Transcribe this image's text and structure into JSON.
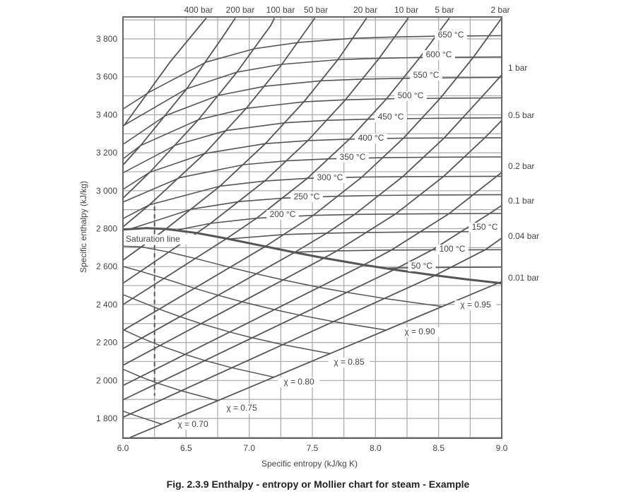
{
  "chart_data": {
    "type": "line",
    "title": "",
    "caption": "Fig. 2.3.9 Enthalpy - entropy or Mollier chart for steam - Example",
    "xlabel": "Specific entropy (kJ/kg K)",
    "ylabel": "Specific enthalpy (kJ/kg)",
    "xlim": [
      6.0,
      9.0
    ],
    "ylim": [
      1700,
      3910
    ],
    "grid": true,
    "grid_step": {
      "x": 0.25,
      "y": 100
    },
    "xticks": [
      "6.0",
      "6.5",
      "7.0",
      "7.5",
      "8.0",
      "8.5",
      "9.0"
    ],
    "yticks": [
      "1 800",
      "2 000",
      "2 200",
      "2 400",
      "2 600",
      "2 800",
      "3 000",
      "3 200",
      "3 400",
      "3 600",
      "3 800"
    ],
    "line_color": "#555555",
    "grid_color": "#a8a8a8",
    "isobars": [
      {
        "name": "400 bar",
        "points": [
          [
            6.0,
            3340
          ],
          [
            6.011,
            3346
          ],
          [
            6.375,
            3680
          ],
          [
            6.66,
            3910
          ]
        ]
      },
      {
        "name": "200 bar",
        "points": [
          [
            6.0,
            3135
          ],
          [
            6.14,
            3238
          ],
          [
            6.505,
            3537
          ],
          [
            6.79,
            3810
          ],
          [
            6.89,
            3910
          ]
        ]
      },
      {
        "name": "100 bar",
        "points": [
          [
            6.0,
            2960
          ],
          [
            6.212,
            3097
          ],
          [
            6.597,
            3374
          ],
          [
            6.903,
            3625
          ],
          [
            7.17,
            3870
          ],
          [
            7.2,
            3910
          ]
        ]
      },
      {
        "name": "50 bar",
        "points": [
          [
            6.0,
            2809
          ],
          [
            6.209,
            2925
          ],
          [
            6.647,
            3196
          ],
          [
            6.976,
            3434
          ],
          [
            7.259,
            3666
          ],
          [
            7.52,
            3910
          ]
        ]
      },
      {
        "name": "20 bar",
        "points": [
          [
            6.0,
            2634
          ],
          [
            6.34,
            2798
          ],
          [
            6.768,
            3024
          ],
          [
            7.128,
            3248
          ],
          [
            7.432,
            3468
          ],
          [
            7.702,
            3690
          ],
          [
            7.93,
            3910
          ]
        ]
      },
      {
        "name": "10 bar",
        "points": [
          [
            6.0,
            2512
          ],
          [
            6.585,
            2777
          ],
          [
            6.694,
            2828
          ],
          [
            7.123,
            3051
          ],
          [
            7.465,
            3264
          ],
          [
            7.762,
            3479
          ],
          [
            8.029,
            3698
          ],
          [
            8.26,
            3910
          ]
        ]
      },
      {
        "name": "5 bar",
        "points": [
          [
            6.0,
            2400
          ],
          [
            6.821,
            2748
          ],
          [
            7.059,
            2855
          ],
          [
            7.46,
            3065
          ],
          [
            7.794,
            3272
          ],
          [
            8.087,
            3484
          ],
          [
            8.352,
            3702
          ],
          [
            8.585,
            3910
          ]
        ]
      },
      {
        "name": "2 bar",
        "points": [
          [
            6.0,
            2263
          ],
          [
            7.127,
            2706
          ],
          [
            7.507,
            2870
          ],
          [
            7.893,
            3072
          ],
          [
            8.222,
            3277
          ],
          [
            8.513,
            3487
          ],
          [
            8.776,
            3704
          ],
          [
            9.0,
            3910
          ]
        ]
      },
      {
        "name": "1 bar",
        "points": [
          [
            6.0,
            2168
          ],
          [
            7.359,
            2675
          ],
          [
            7.614,
            2776
          ],
          [
            7.834,
            2875
          ],
          [
            8.216,
            3074
          ],
          [
            8.544,
            3278
          ],
          [
            8.834,
            3488
          ],
          [
            9.0,
            3610
          ]
        ]
      },
      {
        "name": "0.5 bar",
        "points": [
          [
            6.0,
            2080
          ],
          [
            7.593,
            2645
          ],
          [
            7.695,
            2683
          ],
          [
            8.158,
            2877
          ],
          [
            8.539,
            3075
          ],
          [
            8.866,
            3279
          ],
          [
            9.0,
            3370
          ]
        ]
      },
      {
        "name": "0.2 bar",
        "points": [
          [
            6.0,
            1973
          ],
          [
            7.907,
            2609
          ],
          [
            8.126,
            2687
          ],
          [
            8.583,
            2879
          ],
          [
            8.96,
            3076
          ],
          [
            9.0,
            3097
          ]
        ]
      },
      {
        "name": "0.1 bar",
        "points": [
          [
            6.0,
            1898
          ],
          [
            8.148,
            2584
          ],
          [
            8.449,
            2688
          ],
          [
            8.905,
            2880
          ],
          [
            9.0,
            2922
          ]
        ]
      },
      {
        "name": "0.04 bar",
        "points": [
          [
            6.0,
            1806
          ],
          [
            8.473,
            2554
          ],
          [
            8.87,
            2689
          ],
          [
            9.0,
            2750
          ]
        ]
      },
      {
        "name": "0.01 bar",
        "points": [
          [
            6.057,
            1700
          ],
          [
            8.974,
            2514
          ],
          [
            9.0,
            2521
          ]
        ]
      }
    ],
    "isotherms": [
      {
        "name": "650 °C",
        "points": [
          [
            6.0,
            3430
          ],
          [
            6.21,
            3520
          ],
          [
            6.66,
            3678
          ],
          [
            7.04,
            3748
          ],
          [
            7.39,
            3781
          ],
          [
            7.82,
            3803
          ],
          [
            8.15,
            3810
          ],
          [
            8.47,
            3814
          ],
          [
            9.0,
            3817
          ]
        ]
      },
      {
        "name": "600 °C",
        "points": [
          [
            6.0,
            3342
          ],
          [
            6.505,
            3537
          ],
          [
            6.903,
            3625
          ],
          [
            7.259,
            3666
          ],
          [
            7.702,
            3690
          ],
          [
            8.029,
            3698
          ],
          [
            8.352,
            3702
          ],
          [
            9.0,
            3705
          ]
        ]
      },
      {
        "name": "550 °C",
        "points": [
          [
            6.0,
            3244
          ],
          [
            6.338,
            3396
          ],
          [
            6.756,
            3502
          ],
          [
            7.122,
            3550
          ],
          [
            7.567,
            3579
          ],
          [
            7.9,
            3588
          ],
          [
            8.23,
            3592
          ],
          [
            8.65,
            3595
          ],
          [
            9.0,
            3597
          ]
        ]
      },
      {
        "name": "500 °C",
        "points": [
          [
            6.0,
            3168
          ],
          [
            6.14,
            3238
          ],
          [
            6.597,
            3374
          ],
          [
            6.976,
            3434
          ],
          [
            7.432,
            3468
          ],
          [
            7.762,
            3479
          ],
          [
            8.087,
            3484
          ],
          [
            8.513,
            3487
          ],
          [
            9.0,
            3489
          ]
        ]
      },
      {
        "name": "450 °C",
        "points": [
          [
            6.0,
            3094
          ],
          [
            6.42,
            3241
          ],
          [
            6.819,
            3317
          ],
          [
            7.287,
            3358
          ],
          [
            7.62,
            3371
          ],
          [
            7.945,
            3377
          ],
          [
            8.374,
            3381
          ],
          [
            9.0,
            3384
          ]
        ]
      },
      {
        "name": "400 °C",
        "points": [
          [
            6.0,
            3007
          ],
          [
            6.212,
            3097
          ],
          [
            6.647,
            3196
          ],
          [
            7.128,
            3248
          ],
          [
            7.465,
            3264
          ],
          [
            7.794,
            3272
          ],
          [
            8.222,
            3277
          ],
          [
            9.0,
            3279
          ]
        ]
      },
      {
        "name": "350 °C",
        "points": [
          [
            6.0,
            2940
          ],
          [
            6.452,
            3069
          ],
          [
            6.957,
            3137
          ],
          [
            7.301,
            3158
          ],
          [
            7.635,
            3168
          ],
          [
            8.067,
            3174
          ],
          [
            8.391,
            3176
          ],
          [
            9.0,
            3178
          ]
        ]
      },
      {
        "name": "300 °C",
        "points": [
          [
            6.0,
            2853
          ],
          [
            6.209,
            2925
          ],
          [
            6.768,
            3024
          ],
          [
            7.123,
            3051
          ],
          [
            7.46,
            3065
          ],
          [
            7.893,
            3072
          ],
          [
            8.216,
            3074
          ],
          [
            9.0,
            3076
          ]
        ]
      },
      {
        "name": "250 °C",
        "points": [
          [
            6.07,
            2801
          ],
          [
            6.547,
            2903
          ],
          [
            6.926,
            2943
          ],
          [
            7.272,
            2961
          ],
          [
            7.709,
            2971
          ],
          [
            8.033,
            2975
          ],
          [
            8.356,
            2977
          ],
          [
            9.0,
            2979
          ]
        ]
      },
      {
        "name": "200 °C",
        "points": [
          [
            6.43,
            2793
          ],
          [
            6.694,
            2828
          ],
          [
            7.059,
            2855
          ],
          [
            7.507,
            2870
          ],
          [
            7.834,
            2875
          ],
          [
            8.158,
            2877
          ],
          [
            8.583,
            2879
          ],
          [
            9.0,
            2880
          ]
        ]
      },
      {
        "name": "150 °C",
        "points": [
          [
            6.837,
            2746
          ],
          [
            7.279,
            2769
          ],
          [
            7.614,
            2776
          ],
          [
            7.94,
            2780
          ],
          [
            8.37,
            2783
          ],
          [
            9.0,
            2785
          ]
        ]
      },
      {
        "name": "100 °C",
        "points": [
          [
            7.355,
            2676
          ],
          [
            7.695,
            2683
          ],
          [
            8.126,
            2687
          ],
          [
            8.449,
            2688
          ],
          [
            9.0,
            2689
          ]
        ]
      },
      {
        "name": "50 °C",
        "points": [
          [
            8.075,
            2592
          ],
          [
            8.175,
            2593
          ],
          [
            8.61,
            2596
          ],
          [
            9.0,
            2597
          ]
        ]
      }
    ],
    "quality_lines": [
      {
        "name": "χ = 0.95",
        "points": [
          [
            8.531,
            2389.5
          ],
          [
            8.071,
            2431.9
          ],
          [
            7.773,
            2464.3
          ],
          [
            7.553,
            2491
          ],
          [
            7.268,
            2530
          ],
          [
            7.056,
            2562
          ],
          [
            6.847,
            2596.2
          ],
          [
            6.573,
            2642.7
          ],
          [
            6.363,
            2676.4
          ],
          [
            6.145,
            2703.8
          ],
          [
            6.0,
            2707.5
          ]
        ]
      },
      {
        "name": "χ = 0.90",
        "points": [
          [
            8.087,
            2265.3
          ],
          [
            7.668,
            2310.3
          ],
          [
            7.398,
            2344.7
          ],
          [
            7.2,
            2373.2
          ],
          [
            6.943,
            2414.7
          ],
          [
            6.753,
            2449.2
          ],
          [
            6.567,
            2486.1
          ],
          [
            6.325,
            2537.3
          ],
          [
            6.14,
            2575.6
          ],
          [
            6.0,
            2600.6
          ]
        ]
      },
      {
        "name": "χ = 0.85",
        "points": [
          [
            7.644,
            2141
          ],
          [
            7.266,
            2188.7
          ],
          [
            7.023,
            2225.1
          ],
          [
            6.846,
            2255.3
          ],
          [
            6.618,
            2299.5
          ],
          [
            6.451,
            2336.3
          ],
          [
            6.287,
            2376.1
          ],
          [
            6.077,
            2431.9
          ],
          [
            6.0,
            2452.7
          ]
        ]
      },
      {
        "name": "χ = 0.80",
        "points": [
          [
            7.2,
            2016.8
          ],
          [
            6.863,
            2067.1
          ],
          [
            6.648,
            2105.5
          ],
          [
            6.492,
            2137.4
          ],
          [
            6.293,
            2184.3
          ],
          [
            6.148,
            2223.4
          ],
          [
            6.008,
            2266
          ],
          [
            6.0,
            2268.7
          ]
        ]
      },
      {
        "name": "χ = 0.75",
        "points": [
          [
            6.757,
            1892.6
          ],
          [
            6.461,
            1945.5
          ],
          [
            6.273,
            1985.9
          ],
          [
            6.138,
            2019.5
          ],
          [
            6.0,
            2059.7
          ]
        ]
      },
      {
        "name": "χ = 0.70",
        "points": [
          [
            6.314,
            1768.4
          ],
          [
            6.058,
            1823.9
          ],
          [
            6.0,
            1839.3
          ]
        ]
      }
    ],
    "saturation_line": {
      "name": "Saturation line",
      "points": [
        [
          6.0,
          2795
        ],
        [
          6.186,
          2803
        ],
        [
          6.34,
          2798
        ],
        [
          6.585,
          2777
        ],
        [
          6.821,
          2748
        ],
        [
          7.127,
          2706
        ],
        [
          7.359,
          2675
        ],
        [
          7.593,
          2645
        ],
        [
          7.907,
          2609
        ],
        [
          8.148,
          2584
        ],
        [
          8.473,
          2554
        ],
        [
          8.723,
          2533
        ],
        [
          8.974,
          2514
        ],
        [
          9.0,
          2512
        ]
      ]
    },
    "expansion_line": {
      "style": "dashed",
      "s": 6.25,
      "h_from": 2917,
      "h_to": 1920
    }
  }
}
